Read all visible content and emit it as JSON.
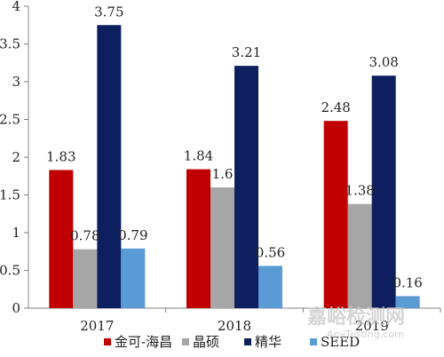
{
  "chart_data": {
    "type": "bar",
    "title": "",
    "xlabel": "",
    "ylabel": "",
    "categories": [
      "2017",
      "2018",
      "2019"
    ],
    "series": [
      {
        "name": "金可-海昌",
        "color": "#c00000",
        "values": [
          1.83,
          1.84,
          2.48
        ]
      },
      {
        "name": "晶硕",
        "color": "#a6a6a6",
        "values": [
          0.78,
          1.6,
          1.38
        ]
      },
      {
        "name": "精华",
        "color": "#0d1f5e",
        "values": [
          3.75,
          3.21,
          3.08
        ]
      },
      {
        "name": "SEED",
        "color": "#5b9bd5",
        "values": [
          0.79,
          0.56,
          0.16
        ]
      }
    ],
    "data_labels": [
      [
        "1.83",
        "1.84",
        "2.48"
      ],
      [
        "0.78",
        "1.6",
        "1.38"
      ],
      [
        "3.75",
        "3.21",
        "3.08"
      ],
      [
        "0.79",
        "0.56",
        "0.16"
      ]
    ],
    "ylim": [
      0,
      4
    ],
    "yticks": [
      "0",
      "0.5",
      "1",
      "1.5",
      "2",
      "2.5",
      "3",
      "3.5",
      "4"
    ],
    "grid": false,
    "legend_position": "bottom"
  },
  "watermark": {
    "line1": "嘉峪检测网",
    "line2": "AnyTesting.com"
  }
}
